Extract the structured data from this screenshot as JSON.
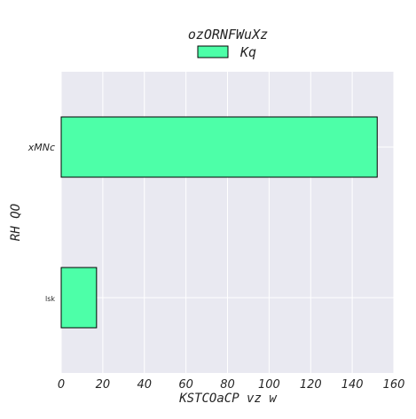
{
  "chart_data": {
    "type": "bar",
    "orientation": "horizontal",
    "title": "ozORNFWuXz",
    "xlabel": "KSTCOaCP vz w",
    "ylabel": "RH QO",
    "categories": [
      "lsk",
      "xMNc"
    ],
    "series": [
      {
        "name": "Kq",
        "values": [
          17,
          152
        ]
      }
    ],
    "xlim": [
      0,
      160
    ],
    "xticks": [
      0,
      20,
      40,
      60,
      80,
      100,
      120,
      140,
      160
    ],
    "xtick_labels": [
      "0",
      "20",
      "40",
      "60",
      "80",
      "100",
      "120",
      "140",
      "160"
    ],
    "grid": true,
    "legend_position": "top-center",
    "colors": {
      "bar_fill": "#4dffa8",
      "bar_edge": "#000000",
      "plot_background": "#e9e9f1",
      "grid": "#ffffff"
    }
  }
}
